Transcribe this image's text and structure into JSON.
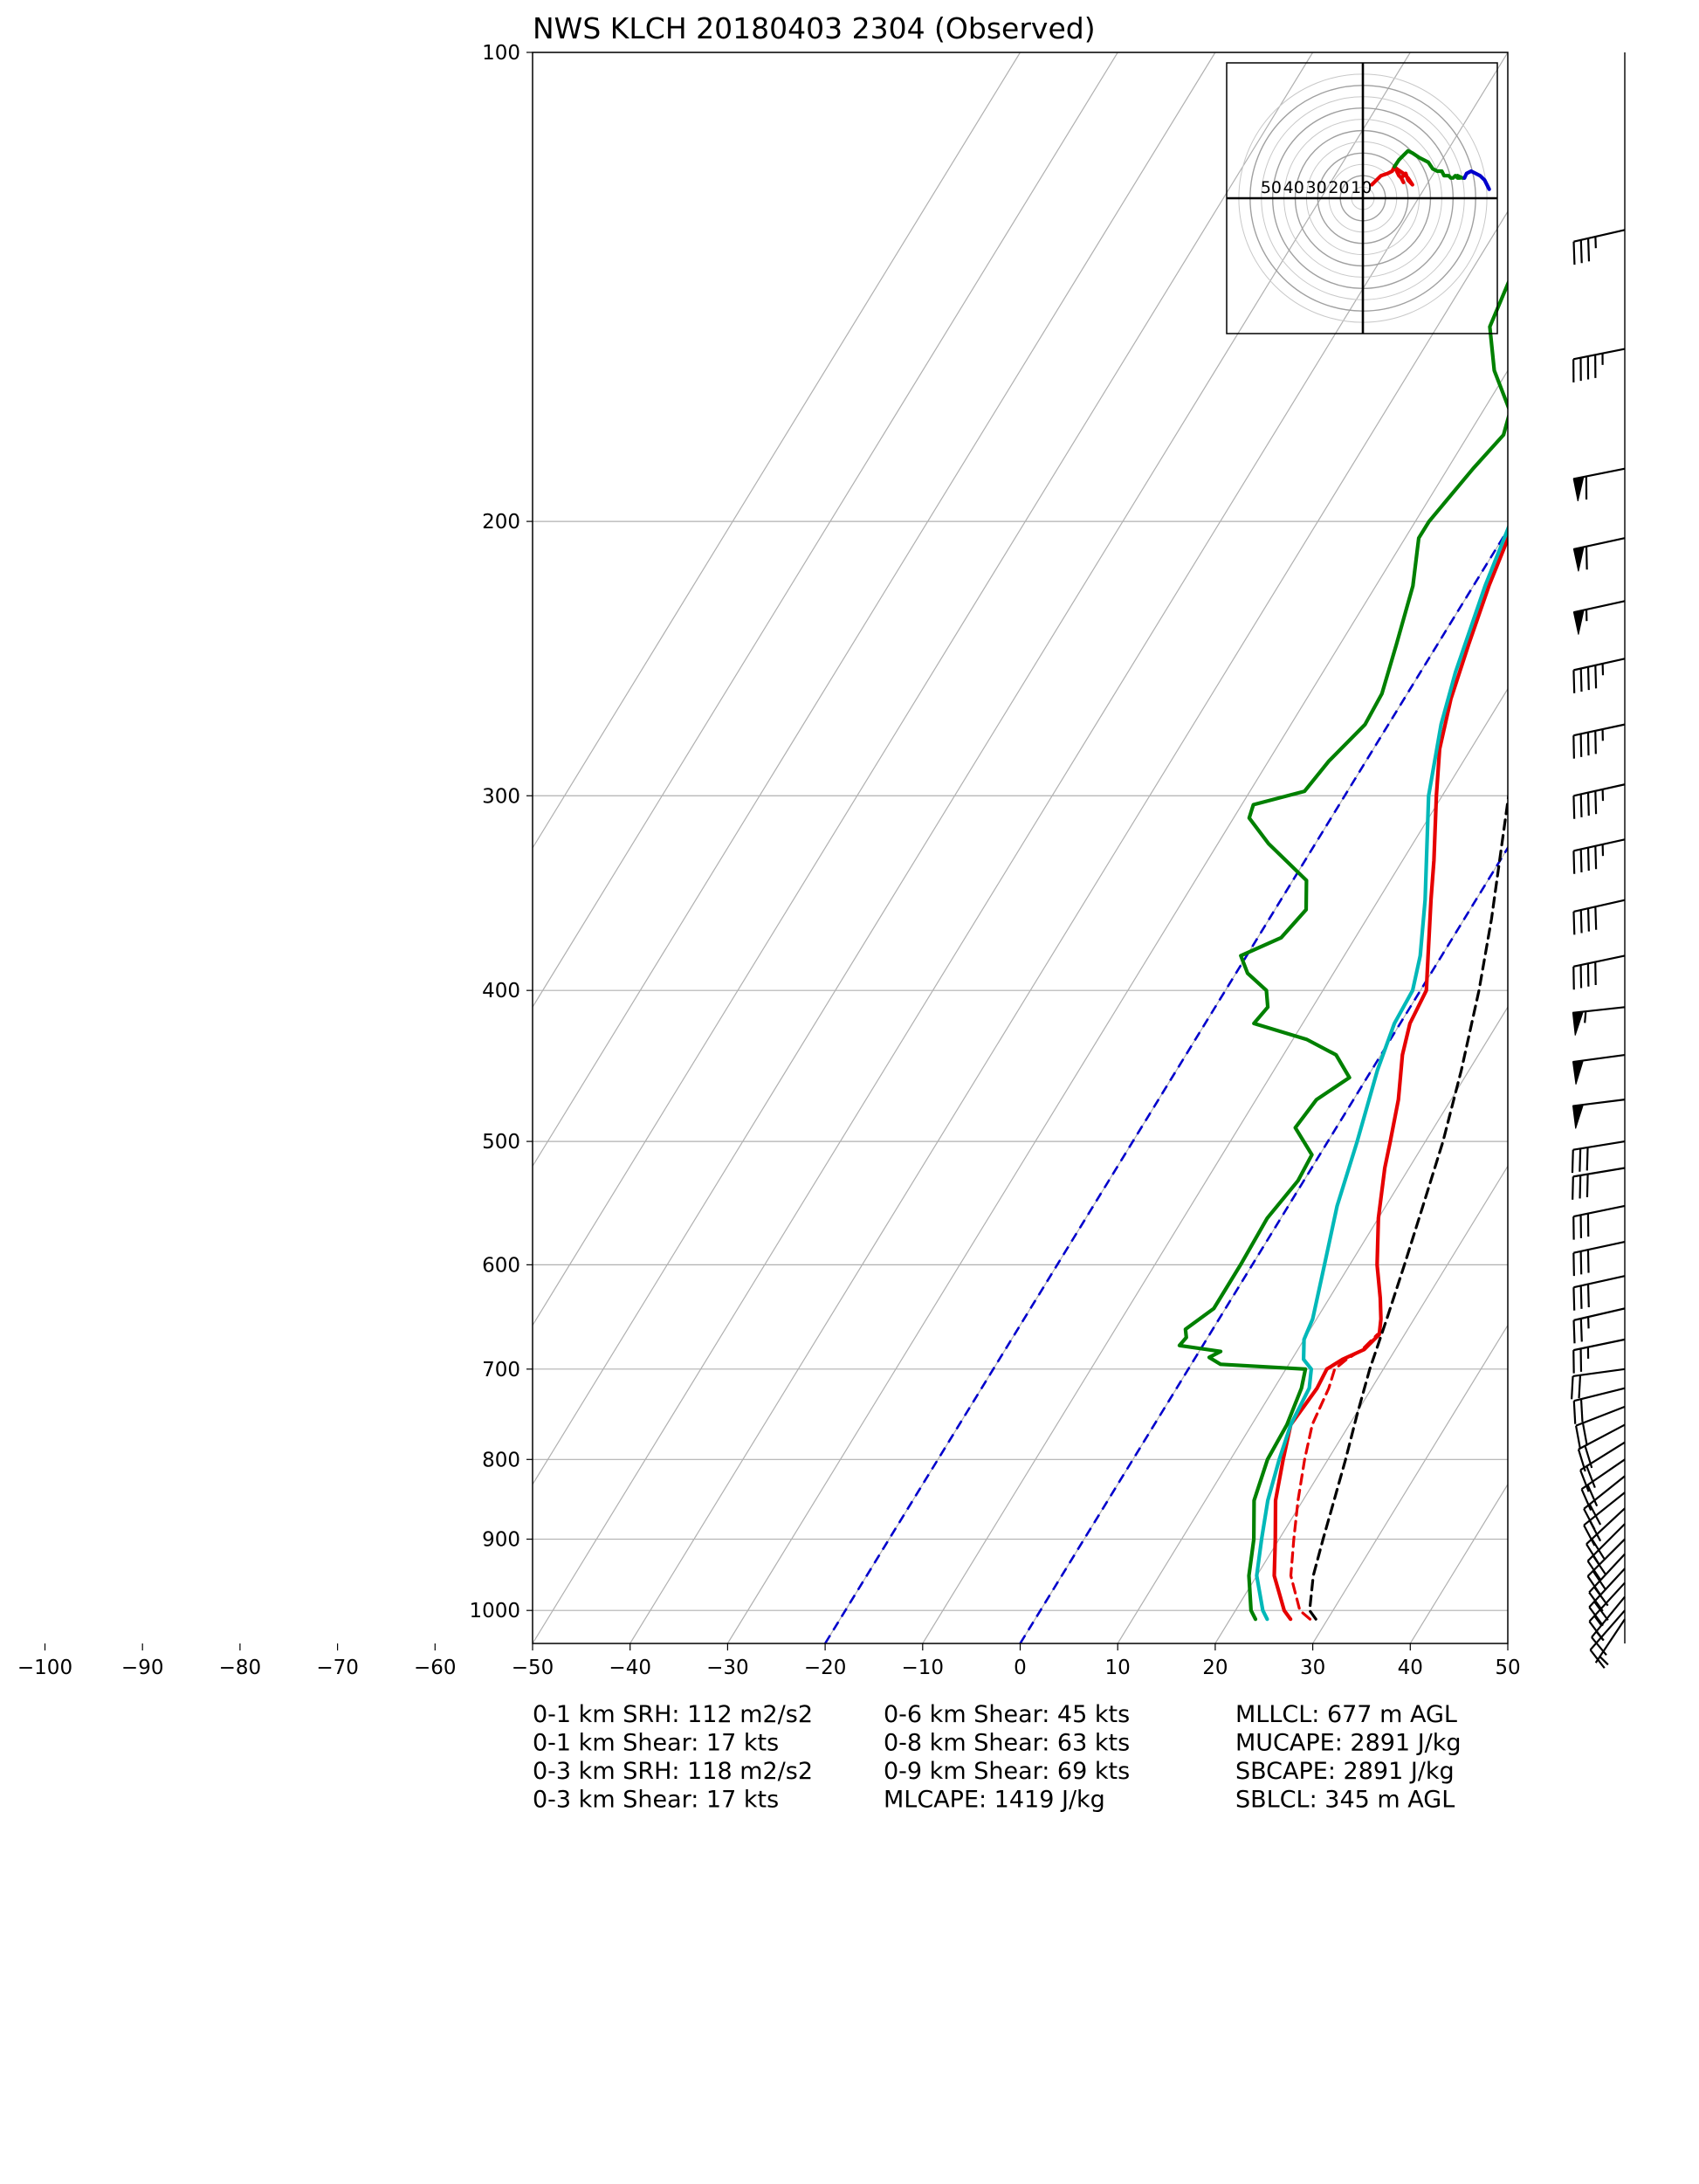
{
  "chart_data": {
    "type": "skew-t log-p sounding",
    "title": "NWS KLCH 20180403 2304   (Observed)",
    "xlabel": "",
    "ylabel": "",
    "p_range": [
      1050,
      100
    ],
    "t_range": [
      -50,
      50
    ],
    "log_pressure_axis": true,
    "grid": true,
    "isobars": [
      100,
      200,
      300,
      400,
      500,
      600,
      700,
      800,
      900,
      1000
    ],
    "pressure_tick_labels": [
      "100",
      "200",
      "300",
      "400",
      "500",
      "600",
      "700",
      "800",
      "900",
      "1000"
    ],
    "temperature_ticks": [
      -100,
      -90,
      -80,
      -70,
      -60,
      -50,
      -40,
      -30,
      -20,
      -10,
      0,
      10,
      20,
      30,
      40,
      50
    ],
    "temperature_tick_labels": [
      "−100",
      "−90",
      "−80",
      "−70",
      "−60",
      "−50",
      "−40",
      "−30",
      "−20",
      "−10",
      "0",
      "10",
      "20",
      "30",
      "40",
      "50"
    ],
    "isotherms": [
      -100,
      -90,
      -80,
      -70,
      -60,
      -50,
      -40,
      -30,
      -20,
      -10,
      0,
      10,
      20,
      30,
      40,
      50,
      60,
      70,
      80,
      90,
      100
    ],
    "highlighted_isotherms": [
      {
        "t": 0,
        "color": "#0000cc",
        "dashed": true
      },
      {
        "t": -20,
        "color": "#0000cc",
        "dashed": true
      }
    ],
    "series": [
      {
        "color": "#e60000",
        "points": [
          [
            1013,
            26.2
          ],
          [
            1000,
            25.0
          ],
          [
            950,
            21.8
          ],
          [
            900,
            19.6
          ],
          [
            850,
            17.2
          ],
          [
            800,
            15.4
          ],
          [
            760,
            14.0
          ],
          [
            720,
            14.4
          ],
          [
            700,
            14.2
          ],
          [
            690,
            15.2
          ],
          [
            680,
            16.8
          ],
          [
            665,
            17.4
          ],
          [
            650,
            16.6
          ],
          [
            630,
            15.2
          ],
          [
            600,
            12.8
          ],
          [
            560,
            10.0
          ],
          [
            520,
            7.5
          ],
          [
            500,
            6.4
          ],
          [
            470,
            4.6
          ],
          [
            440,
            2.2
          ],
          [
            420,
            1.0
          ],
          [
            400,
            0.6
          ],
          [
            380,
            -1.4
          ],
          [
            350,
            -4.6
          ],
          [
            330,
            -6.8
          ],
          [
            300,
            -10.6
          ],
          [
            280,
            -13.2
          ],
          [
            260,
            -15.2
          ],
          [
            240,
            -16.8
          ],
          [
            220,
            -18.4
          ],
          [
            200,
            -19.8
          ],
          [
            185,
            -21.0
          ],
          [
            174,
            -22.2
          ],
          [
            165,
            -21.4
          ],
          [
            150,
            -18.6
          ],
          [
            140,
            -17.4
          ],
          [
            120,
            -16.0
          ],
          [
            110,
            -13.8
          ],
          [
            100,
            -12.0
          ]
        ]
      },
      {
        "color": "#e60000",
        "dashed": true,
        "points": [
          [
            1013,
            28.2
          ],
          [
            1000,
            26.6
          ],
          [
            950,
            23.5
          ],
          [
            900,
            21.5
          ],
          [
            850,
            19.5
          ],
          [
            800,
            17.6
          ],
          [
            760,
            16.2
          ],
          [
            720,
            15.6
          ],
          [
            700,
            15.0
          ],
          [
            690,
            15.6
          ],
          [
            680,
            16.6
          ],
          [
            665,
            17.2
          ]
        ]
      },
      {
        "color": "#00b8b8",
        "points": [
          [
            1013,
            23.8
          ],
          [
            1000,
            22.8
          ],
          [
            950,
            20.0
          ],
          [
            900,
            18.2
          ],
          [
            850,
            16.4
          ],
          [
            800,
            15.0
          ],
          [
            760,
            14.0
          ],
          [
            720,
            13.6
          ],
          [
            700,
            12.6
          ],
          [
            690,
            11.2
          ],
          [
            670,
            10.0
          ],
          [
            650,
            9.6
          ],
          [
            600,
            7.4
          ],
          [
            550,
            5.0
          ],
          [
            500,
            3.0
          ],
          [
            450,
            0.6
          ],
          [
            420,
            -0.6
          ],
          [
            400,
            -0.8
          ],
          [
            380,
            -2.2
          ],
          [
            350,
            -5.2
          ],
          [
            300,
            -11.4
          ],
          [
            270,
            -14.6
          ],
          [
            250,
            -16.4
          ],
          [
            220,
            -18.8
          ],
          [
            200,
            -20.2
          ],
          [
            185,
            -21.0
          ],
          [
            174,
            -22.2
          ],
          [
            165,
            -21.4
          ],
          [
            150,
            -19.0
          ],
          [
            140,
            -17.8
          ],
          [
            120,
            -16.4
          ],
          [
            110,
            -14.6
          ],
          [
            100,
            -12.8
          ]
        ]
      },
      {
        "color": "#008000",
        "points": [
          [
            1013,
            22.6
          ],
          [
            1000,
            21.6
          ],
          [
            950,
            19.2
          ],
          [
            900,
            17.4
          ],
          [
            850,
            15.0
          ],
          [
            800,
            13.8
          ],
          [
            760,
            13.6
          ],
          [
            720,
            12.8
          ],
          [
            700,
            12.0
          ],
          [
            695,
            3.0
          ],
          [
            688,
            1.4
          ],
          [
            682,
            2.2
          ],
          [
            676,
            -2.4
          ],
          [
            668,
            -2.2
          ],
          [
            660,
            -2.8
          ],
          [
            640,
            -1.2
          ],
          [
            600,
            -1.2
          ],
          [
            560,
            -1.4
          ],
          [
            530,
            -0.6
          ],
          [
            510,
            -0.8
          ],
          [
            490,
            -4.2
          ],
          [
            470,
            -3.8
          ],
          [
            455,
            -1.8
          ],
          [
            440,
            -4.6
          ],
          [
            430,
            -8.6
          ],
          [
            420,
            -15.0
          ],
          [
            410,
            -14.6
          ],
          [
            400,
            -15.8
          ],
          [
            390,
            -18.8
          ],
          [
            380,
            -20.6
          ],
          [
            370,
            -17.6
          ],
          [
            355,
            -16.8
          ],
          [
            340,
            -18.6
          ],
          [
            322,
            -24.8
          ],
          [
            310,
            -28.4
          ],
          [
            304,
            -28.8
          ],
          [
            298,
            -24.4
          ],
          [
            285,
            -23.8
          ],
          [
            270,
            -22.4
          ],
          [
            258,
            -22.6
          ],
          [
            240,
            -24.2
          ],
          [
            220,
            -26.2
          ],
          [
            205,
            -28.6
          ],
          [
            200,
            -28.6
          ],
          [
            185,
            -27.4
          ],
          [
            176,
            -26.4
          ],
          [
            170,
            -27.2
          ],
          [
            160,
            -31.4
          ],
          [
            150,
            -34.6
          ],
          [
            135,
            -36.0
          ],
          [
            120,
            -36.8
          ],
          [
            110,
            -35.4
          ],
          [
            100,
            -33.4
          ]
        ]
      },
      {
        "color": "#000000",
        "dashed": true,
        "points": [
          [
            1013,
            28.8
          ],
          [
            1000,
            27.6
          ],
          [
            950,
            25.8
          ],
          [
            900,
            24.5
          ],
          [
            850,
            23.2
          ],
          [
            800,
            21.8
          ],
          [
            750,
            20.2
          ],
          [
            700,
            18.6
          ],
          [
            650,
            17.2
          ],
          [
            600,
            15.6
          ],
          [
            550,
            13.8
          ],
          [
            500,
            11.8
          ],
          [
            450,
            9.2
          ],
          [
            400,
            6.0
          ],
          [
            360,
            2.8
          ],
          [
            300,
            -3.2
          ],
          [
            250,
            -8.8
          ],
          [
            200,
            -14.8
          ],
          [
            170,
            -18.8
          ],
          [
            150,
            -22.2
          ],
          [
            120,
            -27.4
          ],
          [
            100,
            -31.6
          ]
        ]
      }
    ],
    "wind_barbs": [
      {
        "p": 1013,
        "u": 4,
        "v": 6
      },
      {
        "p": 1000,
        "u": 7,
        "v": 8
      },
      {
        "p": 980,
        "u": 9,
        "v": 11
      },
      {
        "p": 960,
        "u": 11,
        "v": 12
      },
      {
        "p": 940,
        "u": 12,
        "v": 13
      },
      {
        "p": 920,
        "u": 13,
        "v": 14
      },
      {
        "p": 900,
        "u": 14,
        "v": 14
      },
      {
        "p": 880,
        "u": 14,
        "v": 14
      },
      {
        "p": 860,
        "u": 14,
        "v": 13
      },
      {
        "p": 840,
        "u": 15,
        "v": 12
      },
      {
        "p": 820,
        "u": 15,
        "v": 12
      },
      {
        "p": 800,
        "u": 16,
        "v": 11
      },
      {
        "p": 780,
        "u": 16,
        "v": 10
      },
      {
        "p": 760,
        "u": 17,
        "v": 9
      },
      {
        "p": 740,
        "u": 18,
        "v": 7
      },
      {
        "p": 720,
        "u": 20,
        "v": 5
      },
      {
        "p": 700,
        "u": 22,
        "v": 3
      },
      {
        "p": 670,
        "u": 24,
        "v": 5
      },
      {
        "p": 640,
        "u": 26,
        "v": 6
      },
      {
        "p": 610,
        "u": 27,
        "v": 6
      },
      {
        "p": 580,
        "u": 28,
        "v": 6
      },
      {
        "p": 550,
        "u": 29,
        "v": 6
      },
      {
        "p": 520,
        "u": 30,
        "v": 5
      },
      {
        "p": 500,
        "u": 31,
        "v": 5
      },
      {
        "p": 470,
        "u": 48,
        "v": 6
      },
      {
        "p": 440,
        "u": 52,
        "v": 7
      },
      {
        "p": 410,
        "u": 55,
        "v": 6
      },
      {
        "p": 380,
        "u": 38,
        "v": 8
      },
      {
        "p": 350,
        "u": 40,
        "v": 9
      },
      {
        "p": 320,
        "u": 45,
        "v": 10
      },
      {
        "p": 295,
        "u": 45,
        "v": 10
      },
      {
        "p": 270,
        "u": 42,
        "v": 9
      },
      {
        "p": 245,
        "u": 45,
        "v": 10
      },
      {
        "p": 225,
        "u": 55,
        "v": 12
      },
      {
        "p": 205,
        "u": 60,
        "v": 13
      },
      {
        "p": 185,
        "u": 60,
        "v": 12
      },
      {
        "p": 155,
        "u": 45,
        "v": 9
      },
      {
        "p": 130,
        "u": 35,
        "v": 8
      }
    ],
    "hodograph": {
      "rings": [
        10,
        20,
        30,
        40,
        50
      ],
      "ring_labels": [
        "50",
        "40",
        "30",
        "20",
        "10"
      ],
      "segments": [
        {
          "color": "#e60000",
          "points": [
            [
              4,
              6
            ],
            [
              6,
              8
            ],
            [
              8,
              10
            ],
            [
              11,
              11
            ],
            [
              13,
              12
            ],
            [
              14,
              14
            ],
            [
              15,
              12
            ],
            [
              16,
              10
            ],
            [
              17,
              9
            ],
            [
              18,
              7
            ],
            [
              17,
              9
            ],
            [
              19,
              11
            ],
            [
              20,
              8
            ],
            [
              22,
              6
            ],
            [
              20,
              9
            ],
            [
              18,
              11
            ],
            [
              15,
              13
            ],
            [
              14,
              14
            ]
          ]
        },
        {
          "color": "#008000",
          "points": [
            [
              14,
              14
            ],
            [
              16,
              17
            ],
            [
              18,
              19
            ],
            [
              20,
              21
            ],
            [
              22,
              20
            ],
            [
              25,
              18
            ],
            [
              27,
              17
            ],
            [
              29,
              16
            ],
            [
              31,
              13
            ],
            [
              33,
              12
            ],
            [
              35,
              12
            ],
            [
              36,
              10
            ],
            [
              38,
              10
            ],
            [
              39,
              9
            ],
            [
              40,
              9
            ],
            [
              41,
              10
            ],
            [
              42,
              9
            ],
            [
              43,
              9
            ],
            [
              42,
              10
            ],
            [
              44,
              9
            ],
            [
              45,
              9
            ]
          ]
        },
        {
          "color": "#0000cc",
          "points": [
            [
              45,
              9
            ],
            [
              46,
              11
            ],
            [
              48,
              12
            ],
            [
              50,
              11
            ],
            [
              52,
              10
            ],
            [
              54,
              8
            ],
            [
              55,
              6
            ],
            [
              56,
              4
            ]
          ]
        }
      ]
    },
    "indices": {
      "col1": [
        "0-1 km SRH: 112 m2/s2",
        "0-1 km Shear: 17 kts",
        "0-3 km SRH: 118 m2/s2",
        "0-3 km Shear: 17 kts"
      ],
      "col2": [
        "0-6 km Shear: 45 kts",
        "0-8 km Shear: 63 kts",
        "0-9 km Shear: 69 kts",
        "MLCAPE: 1419 J/kg"
      ],
      "col3": [
        "MLLCL: 677 m AGL",
        "MUCAPE: 2891 J/kg",
        "SBCAPE: 2891 J/kg",
        "SBLCL: 345 m AGL"
      ]
    }
  }
}
